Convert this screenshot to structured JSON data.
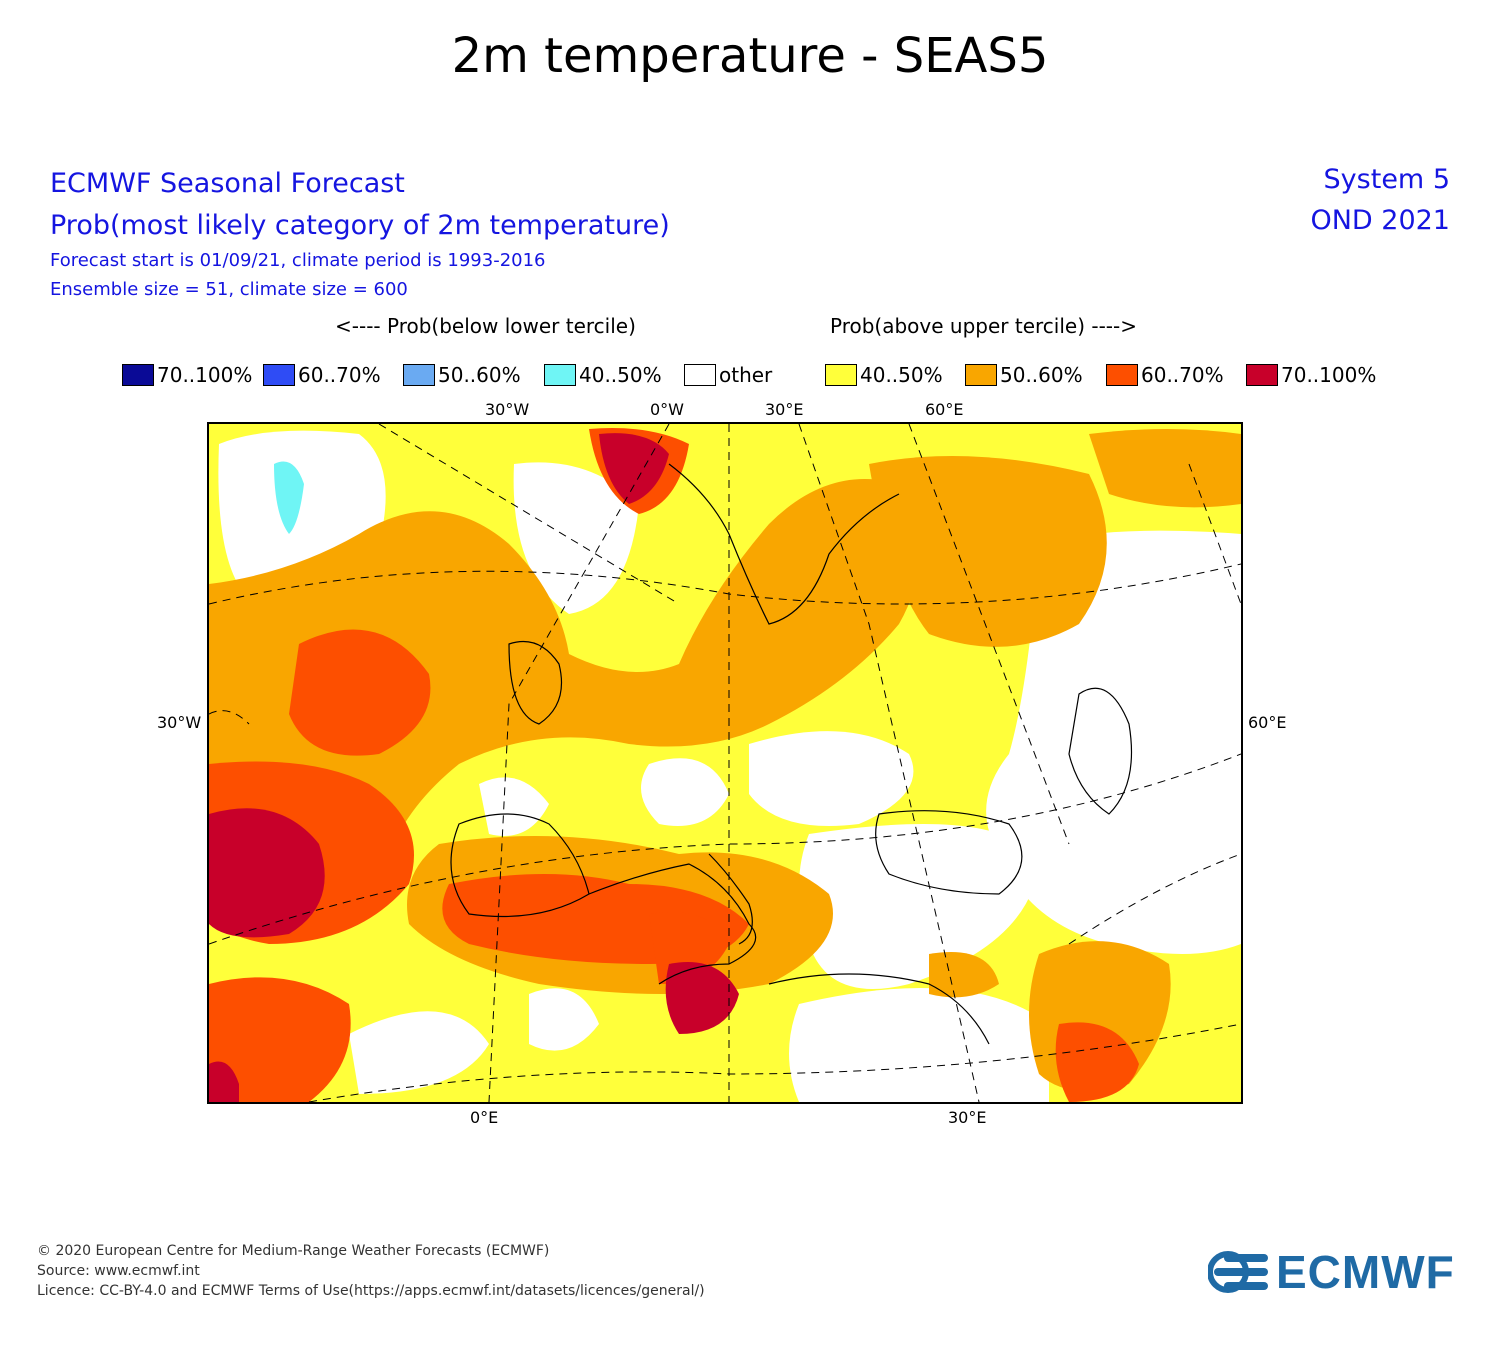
{
  "title": "2m temperature - SEAS5",
  "header": {
    "line1": "ECMWF Seasonal Forecast",
    "line2": "Prob(most likely category of 2m temperature)",
    "line3": "Forecast start is 01/09/21, climate period is 1993-2016",
    "line4": "Ensemble size = 51, climate size = 600",
    "system": "System 5",
    "period": "OND 2021"
  },
  "legend": {
    "below_label": "<---- Prob(below lower tercile)",
    "above_label": "Prob(above upper tercile) ---->",
    "items": [
      {
        "label": "70..100%",
        "color": "#0a0a96"
      },
      {
        "label": "60..70%",
        "color": "#2f4cf5"
      },
      {
        "label": "50..60%",
        "color": "#6aaaf2"
      },
      {
        "label": "40..50%",
        "color": "#6ff5f5"
      },
      {
        "label": "other",
        "color": "#ffffff"
      },
      {
        "label": "40..50%",
        "color": "#ffff3a"
      },
      {
        "label": "50..60%",
        "color": "#f9a600"
      },
      {
        "label": "60..70%",
        "color": "#fd4f00"
      },
      {
        "label": "70..100%",
        "color": "#c8002a"
      }
    ]
  },
  "map": {
    "lon_labels_top": [
      "30°W",
      "0°W",
      "30°E",
      "60°E"
    ],
    "lon_labels_bottom": [
      "0°E",
      "30°E"
    ],
    "lat_label_left": "30°W",
    "lat_label_right": "60°E"
  },
  "footer": {
    "copyright": "© 2020 European Centre for Medium-Range Weather Forecasts (ECMWF)",
    "source": "Source: www.ecmwf.int",
    "licence": "Licence: CC-BY-4.0 and ECMWF Terms of Use(https://apps.ecmwf.int/datasets/licences/general/)",
    "logo_text": "ECMWF",
    "logo_color": "#1f6aa5"
  }
}
